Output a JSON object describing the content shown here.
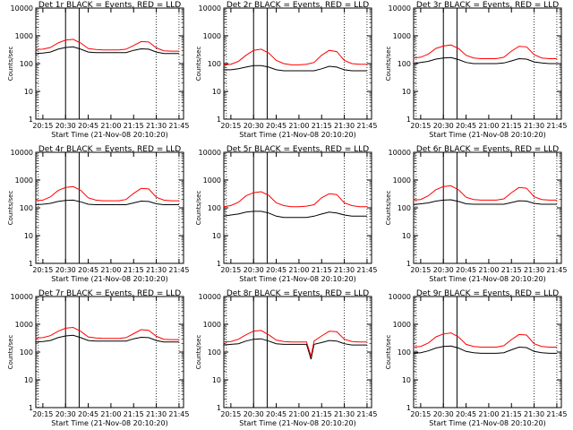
{
  "x_ticks": [
    "20:15",
    "20:30",
    "20:45",
    "21:00",
    "21:15",
    "21:30",
    "21:45"
  ],
  "y_ticks": [
    "1",
    "10",
    "100",
    "1000",
    "10000"
  ],
  "ylabel": "Counts/sec",
  "xlabel": "Start Time (21-Nov-08 20:10:20)",
  "colors": {
    "events": "#000000",
    "lld": "#ff0000",
    "axes": "#000000"
  },
  "chart_data": [
    {
      "type": "line",
      "title": "Det 1r BLACK = Events, RED = LLD",
      "x": [
        "20:10",
        "20:15",
        "20:20",
        "20:25",
        "20:30",
        "20:35",
        "20:40",
        "20:45",
        "20:50",
        "20:55",
        "21:00",
        "21:05",
        "21:10",
        "21:15",
        "21:20",
        "21:25",
        "21:30",
        "21:35",
        "21:40",
        "21:45"
      ],
      "series": [
        {
          "values": [
            230,
            240,
            260,
            330,
            380,
            400,
            330,
            260,
            250,
            250,
            250,
            250,
            250,
            300,
            340,
            330,
            260,
            230,
            230,
            230
          ]
        },
        {
          "values": [
            320,
            330,
            380,
            550,
            700,
            750,
            550,
            350,
            320,
            310,
            310,
            310,
            330,
            450,
            620,
            600,
            370,
            290,
            280,
            280
          ]
        }
      ],
      "ylim": [
        1,
        10000
      ],
      "ylog": true
    },
    {
      "type": "line",
      "title": "Det 2r BLACK = Events, RED = LLD",
      "x": [
        "20:10",
        "20:15",
        "20:20",
        "20:25",
        "20:30",
        "20:35",
        "20:40",
        "20:45",
        "20:50",
        "20:55",
        "21:00",
        "21:05",
        "21:10",
        "21:15",
        "21:20",
        "21:25",
        "21:30",
        "21:35",
        "21:40",
        "21:45"
      ],
      "series": [
        {
          "values": [
            60,
            60,
            65,
            75,
            85,
            85,
            75,
            60,
            55,
            55,
            55,
            55,
            55,
            65,
            80,
            75,
            60,
            55,
            55,
            55
          ]
        },
        {
          "values": [
            90,
            95,
            120,
            200,
            300,
            330,
            240,
            130,
            100,
            90,
            90,
            95,
            110,
            200,
            300,
            270,
            130,
            100,
            95,
            95
          ]
        }
      ],
      "ylim": [
        1,
        10000
      ],
      "ylog": true
    },
    {
      "type": "line",
      "title": "Det 3r BLACK = Events, RED = LLD",
      "x": [
        "20:10",
        "20:15",
        "20:20",
        "20:25",
        "20:30",
        "20:35",
        "20:40",
        "20:45",
        "20:50",
        "20:55",
        "21:00",
        "21:05",
        "21:10",
        "21:15",
        "21:20",
        "21:25",
        "21:30",
        "21:35",
        "21:40",
        "21:45"
      ],
      "series": [
        {
          "values": [
            100,
            110,
            120,
            145,
            160,
            165,
            140,
            110,
            100,
            100,
            100,
            100,
            105,
            125,
            150,
            145,
            115,
            105,
            100,
            100
          ]
        },
        {
          "values": [
            160,
            170,
            220,
            350,
            430,
            470,
            350,
            200,
            160,
            150,
            150,
            150,
            170,
            280,
            420,
            400,
            210,
            160,
            150,
            150
          ]
        }
      ],
      "ylim": [
        1,
        10000
      ],
      "ylog": true
    },
    {
      "type": "line",
      "title": "Det 4r BLACK = Events, RED = LLD",
      "x": [
        "20:10",
        "20:15",
        "20:20",
        "20:25",
        "20:30",
        "20:35",
        "20:40",
        "20:45",
        "20:50",
        "20:55",
        "21:00",
        "21:05",
        "21:10",
        "21:15",
        "21:20",
        "21:25",
        "21:30",
        "21:35",
        "21:40",
        "21:45"
      ],
      "series": [
        {
          "values": [
            130,
            135,
            145,
            170,
            185,
            190,
            165,
            135,
            130,
            130,
            130,
            130,
            130,
            150,
            175,
            170,
            140,
            130,
            130,
            130
          ]
        },
        {
          "values": [
            180,
            190,
            250,
            420,
            540,
            580,
            430,
            230,
            190,
            180,
            180,
            180,
            200,
            330,
            500,
            480,
            240,
            190,
            180,
            180
          ]
        }
      ],
      "ylim": [
        1,
        10000
      ],
      "ylog": true
    },
    {
      "type": "line",
      "title": "Det 5r BLACK = Events, RED = LLD",
      "x": [
        "20:10",
        "20:15",
        "20:20",
        "20:25",
        "20:30",
        "20:35",
        "20:40",
        "20:45",
        "20:50",
        "20:55",
        "21:00",
        "21:05",
        "21:10",
        "21:15",
        "21:20",
        "21:25",
        "21:30",
        "21:35",
        "21:40",
        "21:45"
      ],
      "series": [
        {
          "values": [
            50,
            55,
            60,
            70,
            75,
            75,
            65,
            50,
            45,
            45,
            45,
            45,
            50,
            60,
            70,
            65,
            55,
            50,
            50,
            50
          ]
        },
        {
          "values": [
            110,
            120,
            160,
            270,
            350,
            380,
            280,
            150,
            120,
            110,
            110,
            115,
            130,
            230,
            320,
            300,
            150,
            120,
            110,
            110
          ]
        }
      ],
      "ylim": [
        1,
        10000
      ],
      "ylog": true
    },
    {
      "type": "line",
      "title": "Det 6r BLACK = Events, RED = LLD",
      "x": [
        "20:10",
        "20:15",
        "20:20",
        "20:25",
        "20:30",
        "20:35",
        "20:40",
        "20:45",
        "20:50",
        "20:55",
        "21:00",
        "21:05",
        "21:10",
        "21:15",
        "21:20",
        "21:25",
        "21:30",
        "21:35",
        "21:40",
        "21:45"
      ],
      "series": [
        {
          "values": [
            130,
            140,
            150,
            175,
            190,
            195,
            170,
            140,
            135,
            135,
            135,
            135,
            135,
            155,
            180,
            175,
            145,
            135,
            135,
            135
          ]
        },
        {
          "values": [
            190,
            200,
            270,
            450,
            580,
            620,
            450,
            240,
            200,
            190,
            190,
            190,
            210,
            350,
            540,
            510,
            250,
            200,
            190,
            190
          ]
        }
      ],
      "ylim": [
        1,
        10000
      ],
      "ylog": true
    },
    {
      "type": "line",
      "title": "Det 7r BLACK = Events, RED = LLD",
      "x": [
        "20:10",
        "20:15",
        "20:20",
        "20:25",
        "20:30",
        "20:35",
        "20:40",
        "20:45",
        "20:50",
        "20:55",
        "21:00",
        "21:05",
        "21:10",
        "21:15",
        "21:20",
        "21:25",
        "21:30",
        "21:35",
        "21:40",
        "21:45"
      ],
      "series": [
        {
          "values": [
            230,
            240,
            260,
            330,
            380,
            400,
            330,
            260,
            250,
            250,
            250,
            250,
            250,
            300,
            340,
            330,
            260,
            230,
            230,
            230
          ]
        },
        {
          "values": [
            320,
            330,
            390,
            560,
            720,
            770,
            560,
            350,
            320,
            310,
            310,
            310,
            330,
            460,
            640,
            610,
            370,
            290,
            280,
            280
          ]
        }
      ],
      "ylim": [
        1,
        10000
      ],
      "ylog": true
    },
    {
      "type": "line",
      "title": "Det 8r BLACK = Events, RED = LLD",
      "x": [
        "20:10",
        "20:15",
        "20:20",
        "20:25",
        "20:30",
        "20:35",
        "20:40",
        "20:45",
        "20:50",
        "20:55",
        "21:00",
        "21:05",
        "21:08",
        "21:10",
        "21:15",
        "21:20",
        "21:25",
        "21:30",
        "21:35",
        "21:40",
        "21:45"
      ],
      "series": [
        {
          "values": [
            180,
            190,
            200,
            250,
            290,
            300,
            250,
            200,
            190,
            190,
            190,
            190,
            55,
            190,
            220,
            260,
            250,
            200,
            180,
            180,
            180
          ]
        },
        {
          "values": [
            230,
            240,
            290,
            420,
            570,
            600,
            420,
            270,
            240,
            230,
            230,
            230,
            70,
            250,
            380,
            560,
            540,
            290,
            240,
            230,
            230
          ]
        }
      ],
      "ylim": [
        1,
        10000
      ],
      "ylog": true
    },
    {
      "type": "line",
      "title": "Det 9r BLACK = Events, RED = LLD",
      "x": [
        "20:10",
        "20:15",
        "20:20",
        "20:25",
        "20:30",
        "20:35",
        "20:40",
        "20:45",
        "20:50",
        "20:55",
        "21:00",
        "21:05",
        "21:10",
        "21:15",
        "21:20",
        "21:25",
        "21:30",
        "21:35",
        "21:40",
        "21:45"
      ],
      "series": [
        {
          "values": [
            90,
            95,
            110,
            140,
            160,
            165,
            140,
            105,
            95,
            90,
            90,
            90,
            95,
            120,
            150,
            145,
            105,
            95,
            90,
            90
          ]
        },
        {
          "values": [
            150,
            160,
            210,
            350,
            450,
            490,
            350,
            190,
            160,
            150,
            150,
            150,
            170,
            280,
            430,
            410,
            200,
            160,
            150,
            150
          ]
        }
      ],
      "ylim": [
        1,
        10000
      ],
      "ylog": true
    }
  ]
}
